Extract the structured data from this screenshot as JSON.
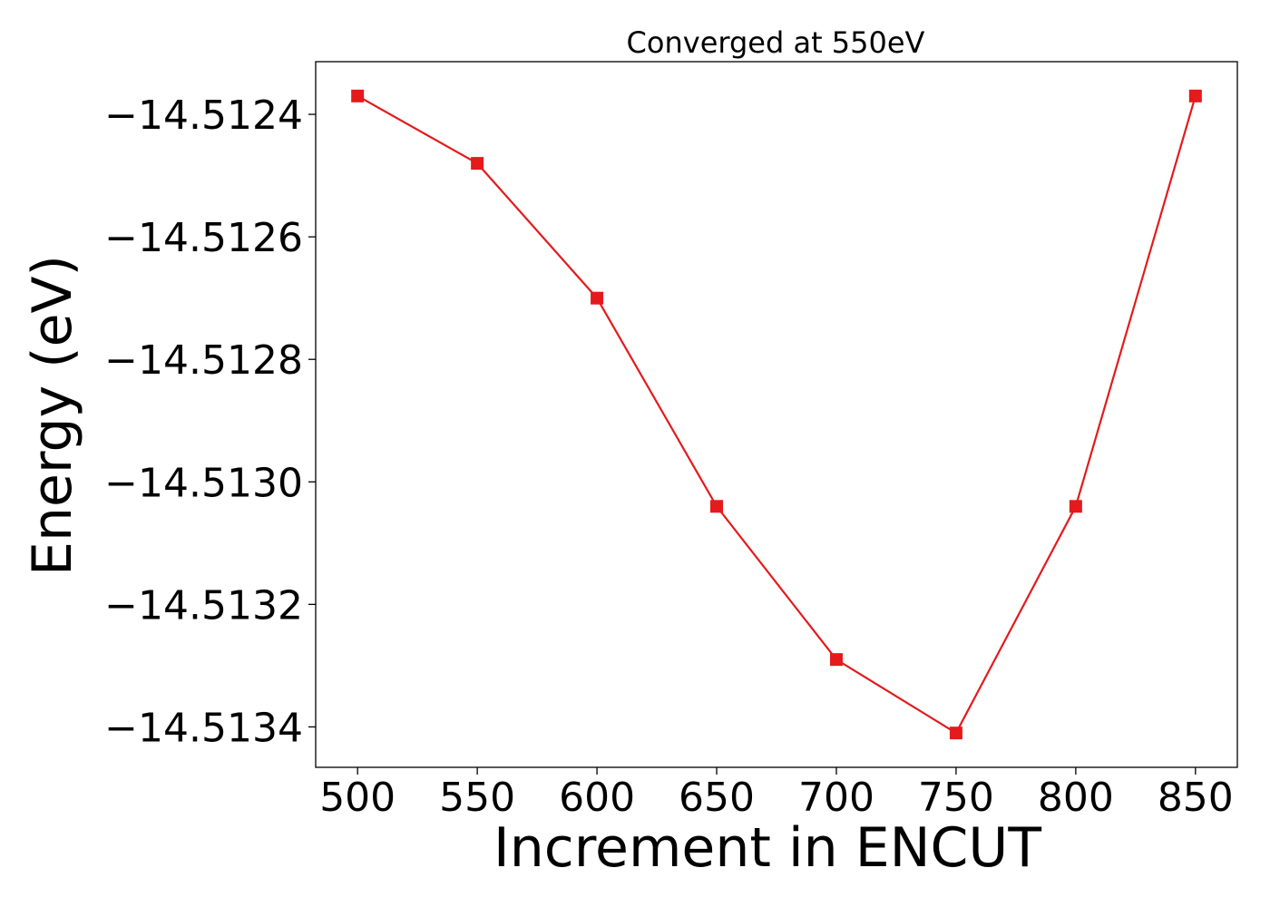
{
  "chart_data": {
    "type": "line",
    "title": "Converged at 550eV",
    "xlabel": "Increment in ENCUT",
    "ylabel": "Energy (eV)",
    "x": [
      500,
      550,
      600,
      650,
      700,
      750,
      800,
      850
    ],
    "series": [
      {
        "values": [
          -14.51237,
          -14.51248,
          -14.5127,
          -14.51304,
          -14.51329,
          -14.51341,
          -14.51304,
          -14.51237
        ],
        "color": "#e41a1c",
        "marker": "square"
      }
    ],
    "x_ticks": [
      500,
      550,
      600,
      650,
      700,
      750,
      800,
      850
    ],
    "x_tick_labels": [
      "500",
      "550",
      "600",
      "650",
      "700",
      "750",
      "800",
      "850"
    ],
    "y_ticks": [
      -14.5124,
      -14.5126,
      -14.5128,
      -14.513,
      -14.5132,
      -14.5134
    ],
    "y_tick_labels": [
      "−14.5124",
      "−14.5126",
      "−14.5128",
      "−14.5130",
      "−14.5132",
      "−14.5134"
    ],
    "xlim": [
      482.5,
      867.5
    ],
    "ylim": [
      -14.513466,
      -14.512314
    ],
    "grid": false,
    "legend": "none"
  }
}
